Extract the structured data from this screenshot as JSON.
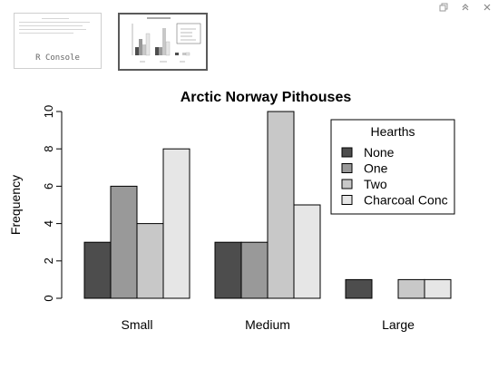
{
  "toolbar": {
    "icons": [
      "copy-icon",
      "chevron-up-icon",
      "close-icon"
    ]
  },
  "thumbnails": {
    "console_label": "R Console"
  },
  "chart_data": {
    "type": "bar",
    "title": "Arctic Norway Pithouses",
    "xlabel": "",
    "ylabel": "Frequency",
    "categories": [
      "Small",
      "Medium",
      "Large"
    ],
    "series": [
      {
        "name": "None",
        "values": [
          3,
          3,
          1
        ],
        "color": "#4d4d4d"
      },
      {
        "name": "One",
        "values": [
          6,
          3,
          0
        ],
        "color": "#999999"
      },
      {
        "name": "Two",
        "values": [
          4,
          10,
          1
        ],
        "color": "#c8c8c8"
      },
      {
        "name": "Charcoal Conc",
        "values": [
          8,
          5,
          1
        ],
        "color": "#e6e6e6"
      }
    ],
    "ylim": [
      0,
      10
    ],
    "yticks": [
      0,
      2,
      4,
      6,
      8,
      10
    ],
    "legend_title": "Hearths",
    "legend_position": "top-right",
    "grid": false
  }
}
